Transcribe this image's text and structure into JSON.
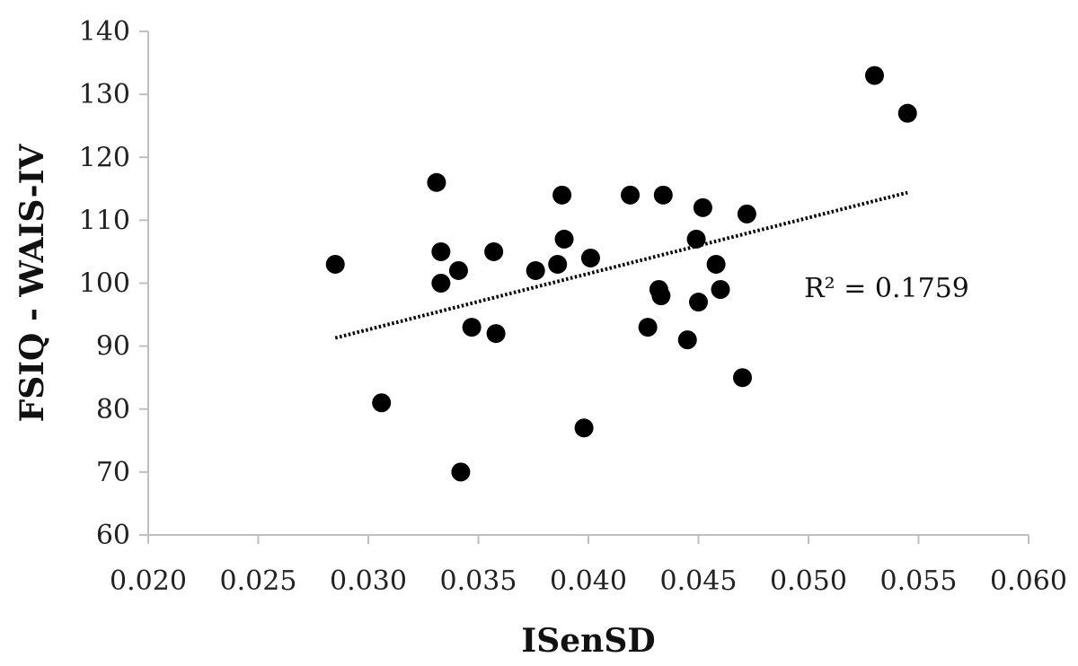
{
  "chart_data": {
    "type": "scatter",
    "title": "",
    "xlabel": "ISenSD",
    "ylabel": "FSIQ - WAIS-IV",
    "xlim": [
      0.02,
      0.06
    ],
    "ylim": [
      60,
      140
    ],
    "xticks": [
      "0.020",
      "0.025",
      "0.030",
      "0.035",
      "0.040",
      "0.045",
      "0.050",
      "0.055",
      "0.060"
    ],
    "yticks": [
      "60",
      "70",
      "80",
      "90",
      "100",
      "110",
      "120",
      "130",
      "140"
    ],
    "grid": false,
    "legend": "none",
    "marker_color": "#000000",
    "points": [
      {
        "x": 0.0285,
        "y": 103
      },
      {
        "x": 0.0306,
        "y": 81
      },
      {
        "x": 0.0331,
        "y": 116
      },
      {
        "x": 0.0333,
        "y": 105
      },
      {
        "x": 0.0333,
        "y": 100
      },
      {
        "x": 0.0341,
        "y": 102
      },
      {
        "x": 0.0342,
        "y": 70
      },
      {
        "x": 0.0347,
        "y": 93
      },
      {
        "x": 0.0357,
        "y": 105
      },
      {
        "x": 0.0358,
        "y": 92
      },
      {
        "x": 0.0376,
        "y": 102
      },
      {
        "x": 0.0386,
        "y": 103
      },
      {
        "x": 0.0388,
        "y": 114
      },
      {
        "x": 0.0389,
        "y": 107
      },
      {
        "x": 0.0398,
        "y": 77
      },
      {
        "x": 0.0401,
        "y": 104
      },
      {
        "x": 0.0419,
        "y": 114
      },
      {
        "x": 0.0427,
        "y": 93
      },
      {
        "x": 0.0432,
        "y": 99
      },
      {
        "x": 0.0433,
        "y": 98
      },
      {
        "x": 0.0434,
        "y": 114
      },
      {
        "x": 0.0445,
        "y": 91
      },
      {
        "x": 0.0449,
        "y": 107
      },
      {
        "x": 0.045,
        "y": 97
      },
      {
        "x": 0.0452,
        "y": 112
      },
      {
        "x": 0.0458,
        "y": 103
      },
      {
        "x": 0.046,
        "y": 99
      },
      {
        "x": 0.047,
        "y": 85
      },
      {
        "x": 0.0472,
        "y": 111
      },
      {
        "x": 0.053,
        "y": 133
      },
      {
        "x": 0.0545,
        "y": 127
      }
    ],
    "trendline": {
      "type": "linear",
      "style": "dotted",
      "start": {
        "x": 0.0285,
        "y": 91.3
      },
      "end": {
        "x": 0.0545,
        "y": 114.4
      }
    },
    "annotations": [
      {
        "text": "R² = 0.1759",
        "x": 0.0498,
        "y": 97.8
      }
    ]
  }
}
